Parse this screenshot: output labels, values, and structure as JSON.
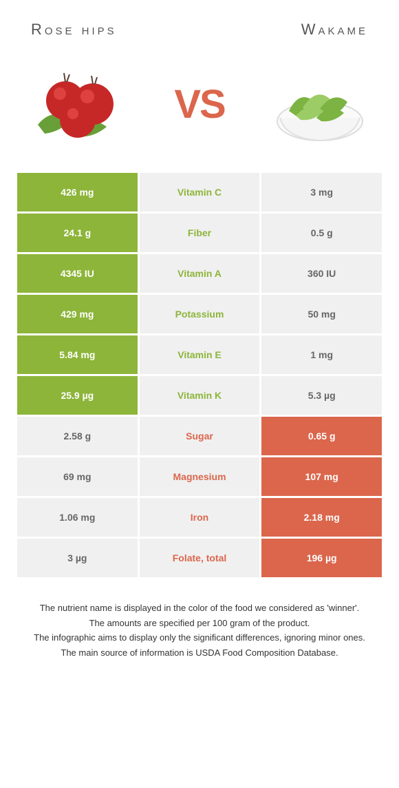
{
  "header": {
    "left_title": "Rose hips",
    "right_title": "Wakame"
  },
  "vs_text": "VS",
  "colors": {
    "left_win_bg": "#8db53a",
    "right_win_bg": "#db664c",
    "lose_bg": "#f0f0f0",
    "left_label_color": "#8db53a",
    "right_label_color": "#db664c",
    "value_win_text": "#ffffff",
    "value_lose_text": "#666666"
  },
  "rows": [
    {
      "label": "Vitamin C",
      "left": "426 mg",
      "right": "3 mg",
      "winner": "left"
    },
    {
      "label": "Fiber",
      "left": "24.1 g",
      "right": "0.5 g",
      "winner": "left"
    },
    {
      "label": "Vitamin A",
      "left": "4345 IU",
      "right": "360 IU",
      "winner": "left"
    },
    {
      "label": "Potassium",
      "left": "429 mg",
      "right": "50 mg",
      "winner": "left"
    },
    {
      "label": "Vitamin E",
      "left": "5.84 mg",
      "right": "1 mg",
      "winner": "left"
    },
    {
      "label": "Vitamin K",
      "left": "25.9 µg",
      "right": "5.3 µg",
      "winner": "left"
    },
    {
      "label": "Sugar",
      "left": "2.58 g",
      "right": "0.65 g",
      "winner": "right"
    },
    {
      "label": "Magnesium",
      "left": "69 mg",
      "right": "107 mg",
      "winner": "right"
    },
    {
      "label": "Iron",
      "left": "1.06 mg",
      "right": "2.18 mg",
      "winner": "right"
    },
    {
      "label": "Folate, total",
      "left": "3 µg",
      "right": "196 µg",
      "winner": "right"
    }
  ],
  "footer": {
    "line1": "The nutrient name is displayed in the color of the food we considered as 'winner'.",
    "line2": "The amounts are specified per 100 gram of the product.",
    "line3": "The infographic aims to display only the significant differences, ignoring minor ones.",
    "line4": "The main source of information is USDA Food Composition Database."
  }
}
